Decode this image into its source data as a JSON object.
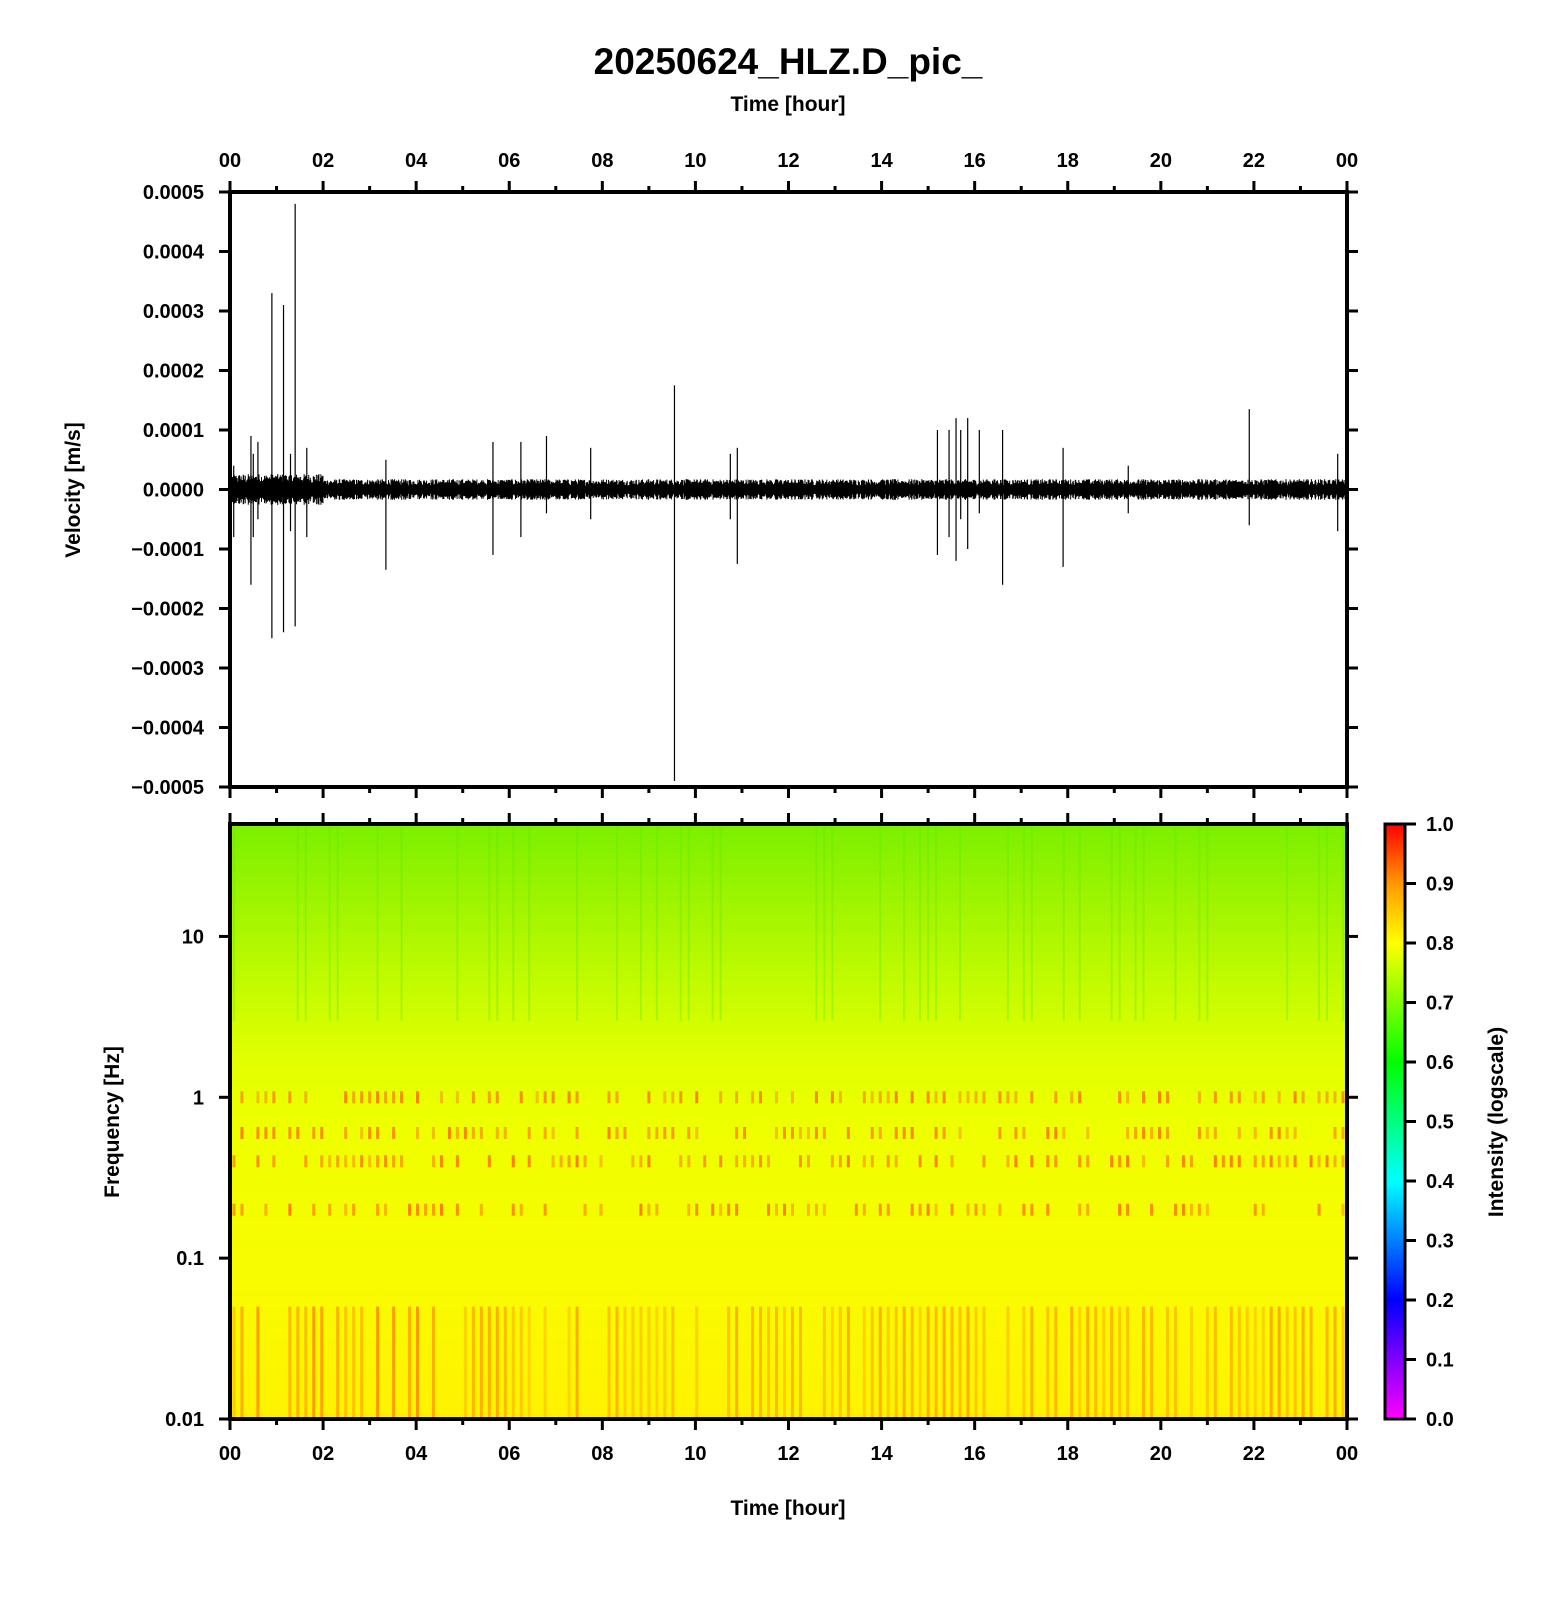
{
  "title": "20250624_HLZ.D_pic_",
  "chart_data": [
    {
      "type": "line",
      "panel": "waveform",
      "xlabel_top": "Time [hour]",
      "ylabel": "Velocity [m/s]",
      "x_ticks": [
        "00",
        "02",
        "04",
        "06",
        "08",
        "10",
        "12",
        "14",
        "16",
        "18",
        "20",
        "22",
        "00"
      ],
      "x_range_hours": [
        0,
        24
      ],
      "y_ticks": [
        "0.0005",
        "0.0004",
        "0.0003",
        "0.0002",
        "0.0001",
        "0.0000",
        "−0.0001",
        "−0.0002",
        "−0.0003",
        "−0.0004",
        "−0.0005"
      ],
      "ylim": [
        -0.0005,
        0.0005
      ],
      "noise_amplitude": 1.2e-05,
      "spikes": [
        {
          "t": 0.08,
          "max": 4e-05,
          "min": -8e-05
        },
        {
          "t": 0.45,
          "max": 9e-05,
          "min": -0.00016
        },
        {
          "t": 0.5,
          "max": 6e-05,
          "min": -8e-05
        },
        {
          "t": 0.6,
          "max": 8e-05,
          "min": -5e-05
        },
        {
          "t": 0.9,
          "max": 0.00033,
          "min": -0.00025
        },
        {
          "t": 1.15,
          "max": 0.00031,
          "min": -0.00024
        },
        {
          "t": 1.3,
          "max": 6e-05,
          "min": -7e-05
        },
        {
          "t": 1.4,
          "max": 0.00048,
          "min": -0.00023
        },
        {
          "t": 1.65,
          "max": 7e-05,
          "min": -8e-05
        },
        {
          "t": 3.35,
          "max": 5e-05,
          "min": -0.000135
        },
        {
          "t": 5.65,
          "max": 8e-05,
          "min": -0.00011
        },
        {
          "t": 6.25,
          "max": 8e-05,
          "min": -8e-05
        },
        {
          "t": 6.8,
          "max": 9e-05,
          "min": -4e-05
        },
        {
          "t": 7.75,
          "max": 7e-05,
          "min": -5e-05
        },
        {
          "t": 9.55,
          "max": 0.000175,
          "min": -0.00049
        },
        {
          "t": 10.75,
          "max": 6e-05,
          "min": -5e-05
        },
        {
          "t": 10.9,
          "max": 7e-05,
          "min": -0.000125
        },
        {
          "t": 15.2,
          "max": 0.0001,
          "min": -0.00011
        },
        {
          "t": 15.45,
          "max": 0.0001,
          "min": -8e-05
        },
        {
          "t": 15.6,
          "max": 0.00012,
          "min": -0.00012
        },
        {
          "t": 15.7,
          "max": 0.0001,
          "min": -5e-05
        },
        {
          "t": 15.85,
          "max": 0.00012,
          "min": -0.0001
        },
        {
          "t": 16.1,
          "max": 0.0001,
          "min": -4e-05
        },
        {
          "t": 16.6,
          "max": 0.0001,
          "min": -0.00016
        },
        {
          "t": 17.9,
          "max": 7e-05,
          "min": -0.00013
        },
        {
          "t": 19.3,
          "max": 4e-05,
          "min": -4e-05
        },
        {
          "t": 21.9,
          "max": 0.000135,
          "min": -6e-05
        },
        {
          "t": 23.8,
          "max": 6e-05,
          "min": -7e-05
        }
      ]
    },
    {
      "type": "heatmap",
      "panel": "spectrogram",
      "xlabel": "Time [hour]",
      "ylabel": "Frequency [Hz]",
      "x_ticks": [
        "00",
        "02",
        "04",
        "06",
        "08",
        "10",
        "12",
        "14",
        "16",
        "18",
        "20",
        "22",
        "00"
      ],
      "x_range_hours": [
        0,
        24
      ],
      "y_scale": "log",
      "ylim_hz": [
        0.01,
        50
      ],
      "y_ticks": [
        "10",
        "1",
        "0.1",
        "0.01"
      ],
      "y_tick_values": [
        10,
        1,
        0.1,
        0.01
      ],
      "colorbar_label": "Intensity (logscale)",
      "colorbar_ticks": [
        "1.0",
        "0.9",
        "0.8",
        "0.7",
        "0.6",
        "0.5",
        "0.4",
        "0.3",
        "0.2",
        "0.1",
        "0.0"
      ],
      "colorbar_range": [
        0.0,
        1.0
      ],
      "intensity_profile_by_frequency": [
        {
          "f": 50,
          "intensity": 0.65
        },
        {
          "f": 20,
          "intensity": 0.69
        },
        {
          "f": 10,
          "intensity": 0.72
        },
        {
          "f": 3,
          "intensity": 0.76
        },
        {
          "f": 1,
          "intensity": 0.8
        },
        {
          "f": 0.1,
          "intensity": 0.81
        },
        {
          "f": 0.01,
          "intensity": 0.83
        }
      ],
      "colors": {
        "c1_0": "#ff0000",
        "c0_9": "#ff9900",
        "c0_8": "#ffff00",
        "c0_6": "#00ff00",
        "c0_4": "#00ffff",
        "c0_2": "#0000ff",
        "c0_0": "#ff00ff"
      }
    }
  ]
}
